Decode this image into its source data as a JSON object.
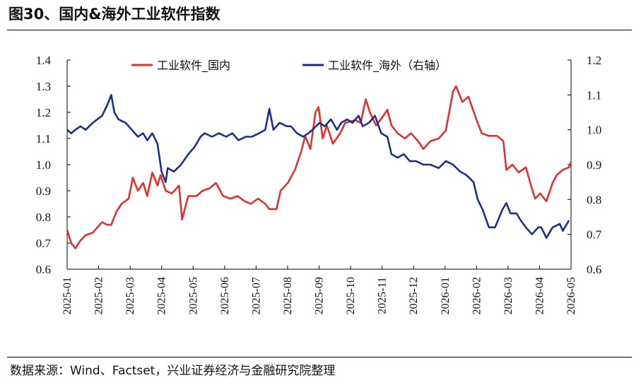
{
  "header": {
    "title": "图30、国内&海外工业软件指数"
  },
  "footer": {
    "source": "数据来源：Wind、Factset，兴业证券经济与金融研究院整理"
  },
  "colors": {
    "domestic": "#E03030",
    "overseas": "#1A2F8A",
    "axis": "#000000"
  },
  "chart_data": {
    "type": "line",
    "title": "",
    "xlabel": "",
    "ylabel": "",
    "legend_position": "top",
    "grid": false,
    "x_ticks": [
      "2025-01",
      "2025-02",
      "2025-03",
      "2025-04",
      "2025-05",
      "2025-06",
      "2025-07",
      "2025-08",
      "2025-09",
      "2025-10",
      "2025-11",
      "2025-12",
      "2026-01",
      "2026-02",
      "2026-03",
      "2026-04",
      "2026-05"
    ],
    "y_left": {
      "min": 0.6,
      "max": 1.4,
      "step": 0.1,
      "ticks": [
        "0.6",
        "0.7",
        "0.8",
        "0.9",
        "1.0",
        "1.1",
        "1.2",
        "1.3",
        "1.4"
      ]
    },
    "y_right": {
      "min": 0.6,
      "max": 1.2,
      "step": 0.1,
      "ticks": [
        "0.6",
        "0.7",
        "0.8",
        "0.9",
        "1.0",
        "1.1",
        "1.2"
      ]
    },
    "series": [
      {
        "name": "工业软件_国内",
        "axis": "left",
        "color": "#E03030",
        "points": [
          [
            "2025-01-02",
            0.75
          ],
          [
            "2025-01-06",
            0.7
          ],
          [
            "2025-01-10",
            0.68
          ],
          [
            "2025-01-15",
            0.71
          ],
          [
            "2025-01-20",
            0.73
          ],
          [
            "2025-01-27",
            0.74
          ],
          [
            "2025-02-05",
            0.78
          ],
          [
            "2025-02-10",
            0.77
          ],
          [
            "2025-02-14",
            0.77
          ],
          [
            "2025-02-19",
            0.82
          ],
          [
            "2025-02-24",
            0.85
          ],
          [
            "2025-03-03",
            0.87
          ],
          [
            "2025-03-07",
            0.95
          ],
          [
            "2025-03-12",
            0.9
          ],
          [
            "2025-03-17",
            0.93
          ],
          [
            "2025-03-21",
            0.88
          ],
          [
            "2025-03-26",
            0.97
          ],
          [
            "2025-03-31",
            0.92
          ],
          [
            "2025-04-03",
            0.96
          ],
          [
            "2025-04-08",
            0.9
          ],
          [
            "2025-04-14",
            0.89
          ],
          [
            "2025-04-21",
            0.92
          ],
          [
            "2025-04-24",
            0.79
          ],
          [
            "2025-04-30",
            0.88
          ],
          [
            "2025-05-08",
            0.88
          ],
          [
            "2025-05-14",
            0.9
          ],
          [
            "2025-05-21",
            0.91
          ],
          [
            "2025-05-27",
            0.93
          ],
          [
            "2025-06-03",
            0.88
          ],
          [
            "2025-06-10",
            0.87
          ],
          [
            "2025-06-17",
            0.88
          ],
          [
            "2025-06-24",
            0.86
          ],
          [
            "2025-06-30",
            0.85
          ],
          [
            "2025-07-07",
            0.87
          ],
          [
            "2025-07-14",
            0.85
          ],
          [
            "2025-07-18",
            0.83
          ],
          [
            "2025-07-25",
            0.83
          ],
          [
            "2025-07-29",
            0.9
          ],
          [
            "2025-08-05",
            0.93
          ],
          [
            "2025-08-12",
            0.98
          ],
          [
            "2025-08-18",
            1.05
          ],
          [
            "2025-08-22",
            1.11
          ],
          [
            "2025-08-27",
            1.06
          ],
          [
            "2025-09-01",
            1.2
          ],
          [
            "2025-09-04",
            1.22
          ],
          [
            "2025-09-08",
            1.1
          ],
          [
            "2025-09-12",
            1.15
          ],
          [
            "2025-09-18",
            1.08
          ],
          [
            "2025-09-25",
            1.12
          ],
          [
            "2025-09-30",
            1.16
          ],
          [
            "2025-10-10",
            1.17
          ],
          [
            "2025-10-15",
            1.16
          ],
          [
            "2025-10-20",
            1.25
          ],
          [
            "2025-10-24",
            1.2
          ],
          [
            "2025-10-30",
            1.15
          ],
          [
            "2025-11-05",
            1.18
          ],
          [
            "2025-11-10",
            1.21
          ],
          [
            "2025-11-14",
            1.15
          ],
          [
            "2025-11-20",
            1.12
          ],
          [
            "2025-11-27",
            1.1
          ],
          [
            "2025-12-03",
            1.12
          ],
          [
            "2025-12-10",
            1.09
          ],
          [
            "2025-12-15",
            1.06
          ],
          [
            "2025-12-22",
            1.09
          ],
          [
            "2025-12-30",
            1.1
          ],
          [
            "2026-01-06",
            1.13
          ],
          [
            "2026-01-13",
            1.28
          ],
          [
            "2026-01-16",
            1.3
          ],
          [
            "2026-01-22",
            1.24
          ],
          [
            "2026-01-28",
            1.26
          ],
          [
            "2026-02-05",
            1.17
          ],
          [
            "2026-02-10",
            1.12
          ],
          [
            "2026-02-17",
            1.11
          ],
          [
            "2026-02-25",
            1.11
          ],
          [
            "2026-03-03",
            1.09
          ],
          [
            "2026-03-06",
            0.98
          ],
          [
            "2026-03-12",
            1.0
          ],
          [
            "2026-03-18",
            0.97
          ],
          [
            "2026-03-25",
            0.99
          ],
          [
            "2026-03-30",
            0.92
          ],
          [
            "2026-04-03",
            0.87
          ],
          [
            "2026-04-08",
            0.89
          ],
          [
            "2026-04-14",
            0.86
          ],
          [
            "2026-04-20",
            0.93
          ],
          [
            "2026-04-24",
            0.96
          ],
          [
            "2026-04-30",
            0.98
          ],
          [
            "2026-05-06",
            0.99
          ],
          [
            "2026-05-08",
            1.01
          ]
        ]
      },
      {
        "name": "工业软件_海外（右轴）",
        "axis": "right",
        "color": "#1A2F8A",
        "points": [
          [
            "2025-01-02",
            1.0
          ],
          [
            "2025-01-06",
            0.99
          ],
          [
            "2025-01-10",
            1.0
          ],
          [
            "2025-01-15",
            1.01
          ],
          [
            "2025-01-20",
            1.0
          ],
          [
            "2025-01-27",
            1.02
          ],
          [
            "2025-02-05",
            1.04
          ],
          [
            "2025-02-10",
            1.07
          ],
          [
            "2025-02-14",
            1.1
          ],
          [
            "2025-02-17",
            1.05
          ],
          [
            "2025-02-21",
            1.03
          ],
          [
            "2025-02-28",
            1.02
          ],
          [
            "2025-03-06",
            1.0
          ],
          [
            "2025-03-12",
            0.98
          ],
          [
            "2025-03-17",
            0.99
          ],
          [
            "2025-03-21",
            0.97
          ],
          [
            "2025-03-26",
            0.99
          ],
          [
            "2025-03-31",
            0.96
          ],
          [
            "2025-04-04",
            0.88
          ],
          [
            "2025-04-08",
            0.85
          ],
          [
            "2025-04-10",
            0.89
          ],
          [
            "2025-04-16",
            0.88
          ],
          [
            "2025-04-23",
            0.9
          ],
          [
            "2025-04-30",
            0.93
          ],
          [
            "2025-05-06",
            0.95
          ],
          [
            "2025-05-12",
            0.98
          ],
          [
            "2025-05-16",
            0.99
          ],
          [
            "2025-05-23",
            0.98
          ],
          [
            "2025-05-30",
            0.99
          ],
          [
            "2025-06-06",
            0.98
          ],
          [
            "2025-06-12",
            0.99
          ],
          [
            "2025-06-18",
            0.97
          ],
          [
            "2025-06-25",
            0.98
          ],
          [
            "2025-07-01",
            0.98
          ],
          [
            "2025-07-08",
            0.99
          ],
          [
            "2025-07-14",
            1.0
          ],
          [
            "2025-07-18",
            1.06
          ],
          [
            "2025-07-22",
            1.0
          ],
          [
            "2025-07-28",
            1.02
          ],
          [
            "2025-08-04",
            1.01
          ],
          [
            "2025-08-08",
            1.01
          ],
          [
            "2025-08-14",
            0.99
          ],
          [
            "2025-08-20",
            0.98
          ],
          [
            "2025-08-25",
            0.99
          ],
          [
            "2025-08-29",
            1.0
          ],
          [
            "2025-09-05",
            1.02
          ],
          [
            "2025-09-10",
            1.01
          ],
          [
            "2025-09-16",
            1.03
          ],
          [
            "2025-09-22",
            1.0
          ],
          [
            "2025-09-26",
            1.02
          ],
          [
            "2025-10-02",
            1.03
          ],
          [
            "2025-10-07",
            1.02
          ],
          [
            "2025-10-13",
            1.04
          ],
          [
            "2025-10-17",
            1.01
          ],
          [
            "2025-10-23",
            1.02
          ],
          [
            "2025-10-29",
            1.04
          ],
          [
            "2025-11-04",
            0.99
          ],
          [
            "2025-11-10",
            0.98
          ],
          [
            "2025-11-14",
            0.93
          ],
          [
            "2025-11-20",
            0.92
          ],
          [
            "2025-11-26",
            0.93
          ],
          [
            "2025-12-02",
            0.91
          ],
          [
            "2025-12-08",
            0.91
          ],
          [
            "2025-12-15",
            0.9
          ],
          [
            "2025-12-22",
            0.9
          ],
          [
            "2025-12-30",
            0.89
          ],
          [
            "2026-01-06",
            0.91
          ],
          [
            "2026-01-13",
            0.9
          ],
          [
            "2026-01-20",
            0.88
          ],
          [
            "2026-01-26",
            0.87
          ],
          [
            "2026-02-02",
            0.85
          ],
          [
            "2026-02-06",
            0.8
          ],
          [
            "2026-02-11",
            0.77
          ],
          [
            "2026-02-17",
            0.72
          ],
          [
            "2026-02-23",
            0.72
          ],
          [
            "2026-03-02",
            0.77
          ],
          [
            "2026-03-06",
            0.79
          ],
          [
            "2026-03-10",
            0.76
          ],
          [
            "2026-03-16",
            0.76
          ],
          [
            "2026-03-20",
            0.74
          ],
          [
            "2026-03-25",
            0.72
          ],
          [
            "2026-03-31",
            0.7
          ],
          [
            "2026-04-06",
            0.72
          ],
          [
            "2026-04-09",
            0.72
          ],
          [
            "2026-04-14",
            0.69
          ],
          [
            "2026-04-20",
            0.72
          ],
          [
            "2026-04-27",
            0.73
          ],
          [
            "2026-04-30",
            0.71
          ],
          [
            "2026-05-06",
            0.74
          ]
        ]
      }
    ]
  }
}
